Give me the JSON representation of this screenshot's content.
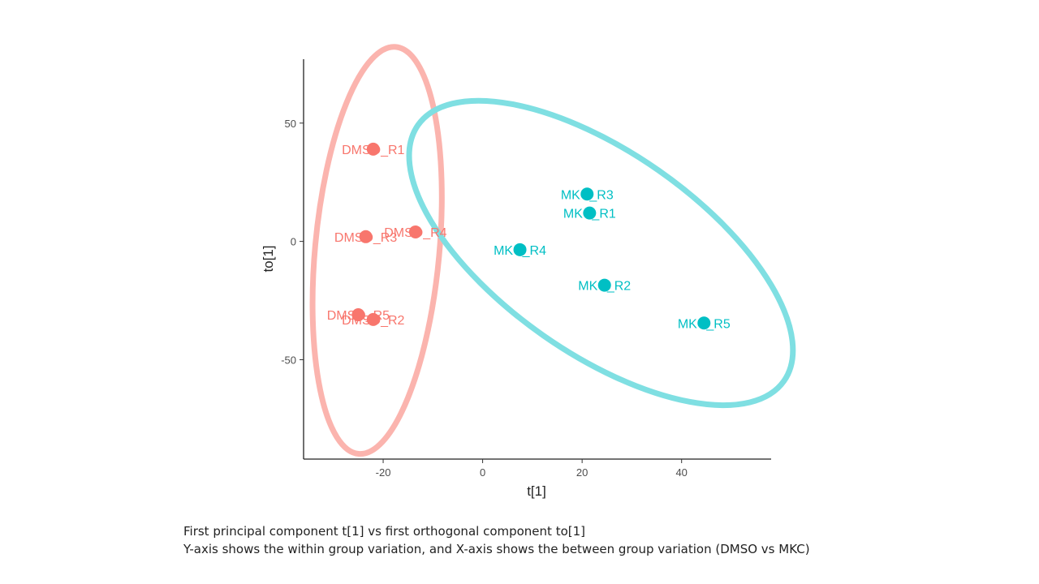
{
  "chart_data": {
    "type": "scatter",
    "xlabel": "t[1]",
    "ylabel": "to[1]",
    "xlim": [
      -36,
      58
    ],
    "ylim": [
      -92,
      77
    ],
    "xticks": [
      -20,
      0,
      20,
      40
    ],
    "yticks": [
      50,
      0,
      -50
    ],
    "tick_labels_x": [
      "-20",
      "0",
      "20",
      "40"
    ],
    "tick_labels_y": [
      "50",
      "0",
      "-50"
    ],
    "grid": false,
    "legend": "none",
    "series": [
      {
        "color": "#f8766d",
        "ellipse_color": "#fbb4ae",
        "points": [
          {
            "label": "DMSO_R1",
            "x": -22,
            "y": 39
          },
          {
            "label": "DMSO_R3",
            "x": -23.5,
            "y": 2
          },
          {
            "label": "DMSO_R4",
            "x": -13.5,
            "y": 4
          },
          {
            "label": "DMSO_R5",
            "x": -25,
            "y": -31
          },
          {
            "label": "DMSO_R2",
            "x": -22,
            "y": -33
          }
        ]
      },
      {
        "color": "#00bfc4",
        "ellipse_color": "#7fdfe2",
        "points": [
          {
            "label": "MKC_R3",
            "x": 21,
            "y": 20
          },
          {
            "label": "MKC_R1",
            "x": 21.5,
            "y": 12
          },
          {
            "label": "MKC_R4",
            "x": 7.5,
            "y": -3.5
          },
          {
            "label": "MKC_R2",
            "x": 24.5,
            "y": -18.5
          },
          {
            "label": "MKC_R5",
            "x": 44.5,
            "y": -34.5
          }
        ]
      }
    ]
  },
  "caption": {
    "line1": "First principal component t[1] vs first orthogonal component to[1]",
    "line2": "Y-axis shows the within group variation, and X-axis shows the between group variation (DMSO vs MKC)"
  }
}
